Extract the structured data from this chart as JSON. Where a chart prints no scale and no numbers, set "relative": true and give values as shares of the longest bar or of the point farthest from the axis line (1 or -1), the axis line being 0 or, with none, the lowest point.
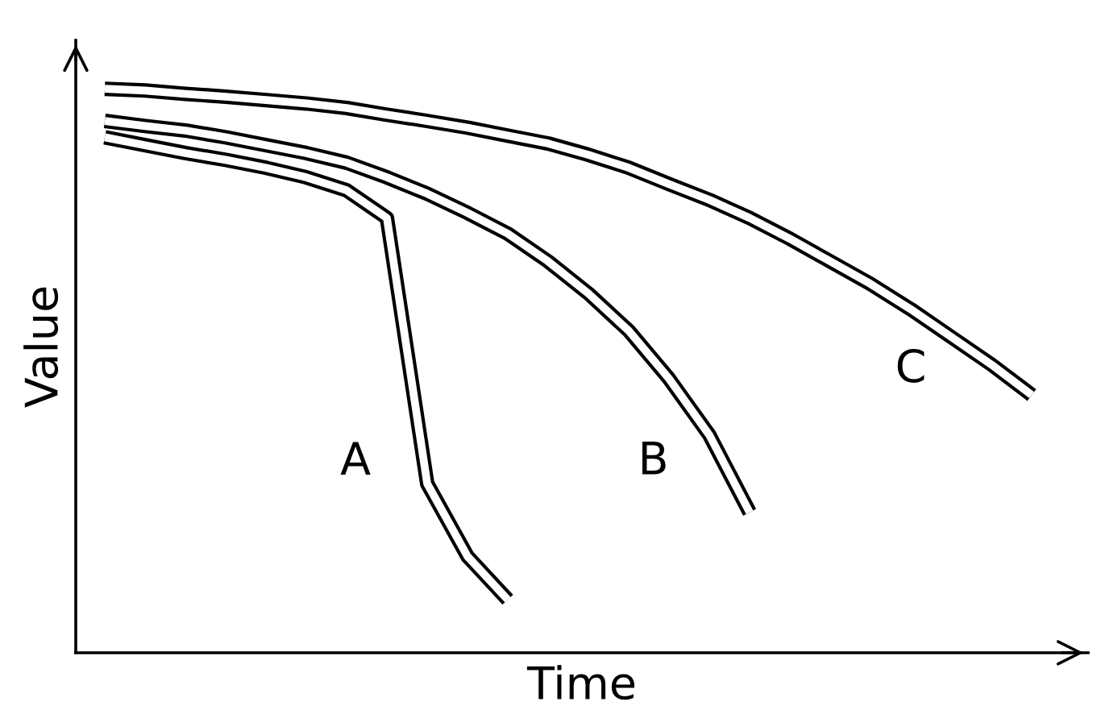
{
  "chart_data": {
    "type": "line",
    "relative": true,
    "xlabel": "Time",
    "ylabel": "Value",
    "categories": [
      null,
      null,
      null,
      null,
      null,
      null,
      null,
      null,
      null,
      null,
      null,
      null,
      null,
      null,
      null,
      null,
      null,
      null,
      null,
      null,
      null,
      null,
      null,
      null,
      null
    ],
    "series": [
      {
        "name": "A",
        "color": "#000000",
        "values": [
          0.914,
          0.9,
          0.886,
          0.874,
          0.86,
          0.843,
          0.82,
          0.771,
          0.3,
          0.171,
          0.094,
          null,
          null,
          null,
          null,
          null,
          null,
          null,
          null,
          null,
          null,
          null,
          null,
          null,
          null
        ]
      },
      {
        "name": "B",
        "color": "#000000",
        "values": [
          0.943,
          0.934,
          0.926,
          0.914,
          0.9,
          0.886,
          0.869,
          0.843,
          0.814,
          0.78,
          0.743,
          0.694,
          0.637,
          0.571,
          0.486,
          0.386,
          0.249,
          null,
          null,
          null,
          null,
          null,
          null,
          null,
          null
        ]
      },
      {
        "name": "C",
        "color": "#000000",
        "values": [
          1.0,
          0.997,
          0.991,
          0.986,
          0.98,
          0.974,
          0.966,
          0.954,
          0.943,
          0.931,
          0.917,
          0.903,
          0.883,
          0.86,
          0.831,
          0.803,
          0.771,
          0.734,
          0.694,
          0.654,
          0.609,
          0.56,
          0.511,
          0.457,
          null
        ]
      }
    ]
  }
}
